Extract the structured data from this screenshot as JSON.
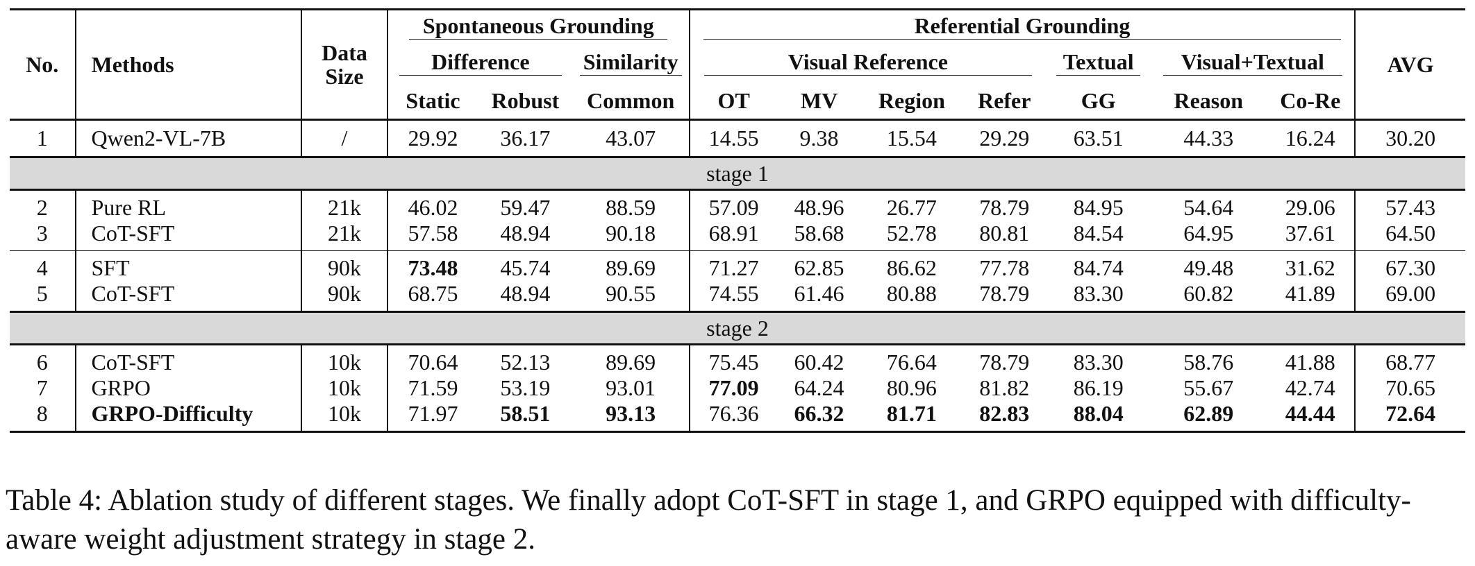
{
  "table": {
    "headers": {
      "no": "No.",
      "methods": "Methods",
      "data_size": "Data Size",
      "spontaneous": "Spontaneous Grounding",
      "referential": "Referential Grounding",
      "difference": "Difference",
      "similarity": "Similarity",
      "visual_reference": "Visual Reference",
      "textual": "Textual",
      "visual_textual": "Visual+Textual",
      "avg": "AVG",
      "static": "Static",
      "robust": "Robust",
      "common": "Common",
      "ot": "OT",
      "mv": "MV",
      "region": "Region",
      "refer": "Refer",
      "gg": "GG",
      "reason": "Reason",
      "core": "Co-Re"
    },
    "stage1_label": "stage 1",
    "stage2_label": "stage 2",
    "rows": [
      {
        "no": "1",
        "method": "Qwen2-VL-7B",
        "data": "/",
        "static": "29.92",
        "robust": "36.17",
        "common": "43.07",
        "ot": "14.55",
        "mv": "9.38",
        "region": "15.54",
        "refer": "29.29",
        "gg": "63.51",
        "reason": "44.33",
        "core": "16.24",
        "avg": "30.20"
      },
      {
        "no": "2",
        "method": "Pure RL",
        "data": "21k",
        "static": "46.02",
        "robust": "59.47",
        "common": "88.59",
        "ot": "57.09",
        "mv": "48.96",
        "region": "26.77",
        "refer": "78.79",
        "gg": "84.95",
        "reason": "54.64",
        "core": "29.06",
        "avg": "57.43"
      },
      {
        "no": "3",
        "method": "CoT-SFT",
        "data": "21k",
        "static": "57.58",
        "robust": "48.94",
        "common": "90.18",
        "ot": "68.91",
        "mv": "58.68",
        "region": "52.78",
        "refer": "80.81",
        "gg": "84.54",
        "reason": "64.95",
        "core": "37.61",
        "avg": "64.50"
      },
      {
        "no": "4",
        "method": "SFT",
        "data": "90k",
        "static": "73.48",
        "robust": "45.74",
        "common": "89.69",
        "ot": "71.27",
        "mv": "62.85",
        "region": "86.62",
        "refer": "77.78",
        "gg": "84.74",
        "reason": "49.48",
        "core": "31.62",
        "avg": "67.30"
      },
      {
        "no": "5",
        "method": "CoT-SFT",
        "data": "90k",
        "static": "68.75",
        "robust": "48.94",
        "common": "90.55",
        "ot": "74.55",
        "mv": "61.46",
        "region": "80.88",
        "refer": "78.79",
        "gg": "83.30",
        "reason": "60.82",
        "core": "41.89",
        "avg": "69.00"
      },
      {
        "no": "6",
        "method": "CoT-SFT",
        "data": "10k",
        "static": "70.64",
        "robust": "52.13",
        "common": "89.69",
        "ot": "75.45",
        "mv": "60.42",
        "region": "76.64",
        "refer": "78.79",
        "gg": "83.30",
        "reason": "58.76",
        "core": "41.88",
        "avg": "68.77"
      },
      {
        "no": "7",
        "method": "GRPO",
        "data": "10k",
        "static": "71.59",
        "robust": "53.19",
        "common": "93.01",
        "ot": "77.09",
        "mv": "64.24",
        "region": "80.96",
        "refer": "81.82",
        "gg": "86.19",
        "reason": "55.67",
        "core": "42.74",
        "avg": "70.65"
      },
      {
        "no": "8",
        "method": "GRPO-Difficulty",
        "data": "10k",
        "static": "71.97",
        "robust": "58.51",
        "common": "93.13",
        "ot": "76.36",
        "mv": "66.32",
        "region": "81.71",
        "refer": "82.83",
        "gg": "88.04",
        "reason": "62.89",
        "core": "44.44",
        "avg": "72.64"
      }
    ]
  },
  "caption": "Table 4: Ablation study of different stages. We finally adopt CoT-SFT in stage 1, and GRPO equipped with difficulty-aware weight adjustment strategy in stage 2."
}
